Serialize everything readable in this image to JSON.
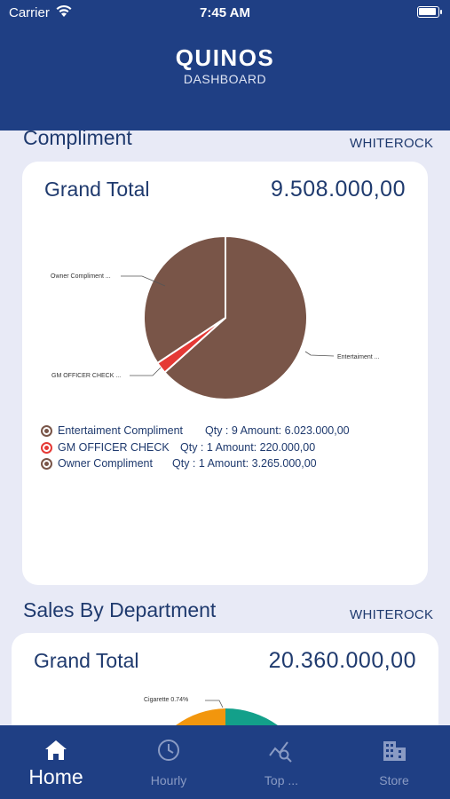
{
  "status_bar": {
    "carrier": "Carrier",
    "time": "7:45 AM"
  },
  "header": {
    "title": "QUINOS",
    "subtitle": "DASHBOARD"
  },
  "compliment": {
    "section_title": "Compliment",
    "store": "WHITEROCK",
    "grand_total_label": "Grand Total",
    "grand_total_value": "9.508.000,00",
    "chart_labels": {
      "owner": "Owner Compliment ...",
      "gm": "GM OFFICER CHECK ...",
      "entertainment": "Entertaiment ..."
    },
    "legend": [
      {
        "name": "Entertaiment Compliment",
        "qty_amount": "Qty : 9  Amount: 6.023.000,00",
        "color": "#795548"
      },
      {
        "name": "GM OFFICER CHECK",
        "qty_amount": "Qty : 1  Amount: 220.000,00",
        "color": "#e53935"
      },
      {
        "name": "Owner Compliment",
        "qty_amount": "Qty : 1  Amount: 3.265.000,00",
        "color": "#795548"
      }
    ]
  },
  "sales_by_department": {
    "section_title": "Sales By Department",
    "store": "WHITEROCK",
    "grand_total_label": "Grand Total",
    "grand_total_value": "20.360.000,00",
    "chart_label": "Cigarette  0.74%"
  },
  "tabs": [
    {
      "label": "Home",
      "icon": "home-icon",
      "active": true
    },
    {
      "label": "Hourly",
      "icon": "clock-icon",
      "active": false
    },
    {
      "label": "Top ...",
      "icon": "trend-search-icon",
      "active": false
    },
    {
      "label": "Store",
      "icon": "building-icon",
      "active": false
    }
  ],
  "chart_data": [
    {
      "type": "pie",
      "title": "",
      "categories": [
        "Entertaiment Compliment",
        "GM OFFICER CHECK",
        "Owner Compliment"
      ],
      "values": [
        6023000,
        220000,
        3265000
      ],
      "colors": [
        "#795548",
        "#e53935",
        "#795548"
      ]
    }
  ]
}
